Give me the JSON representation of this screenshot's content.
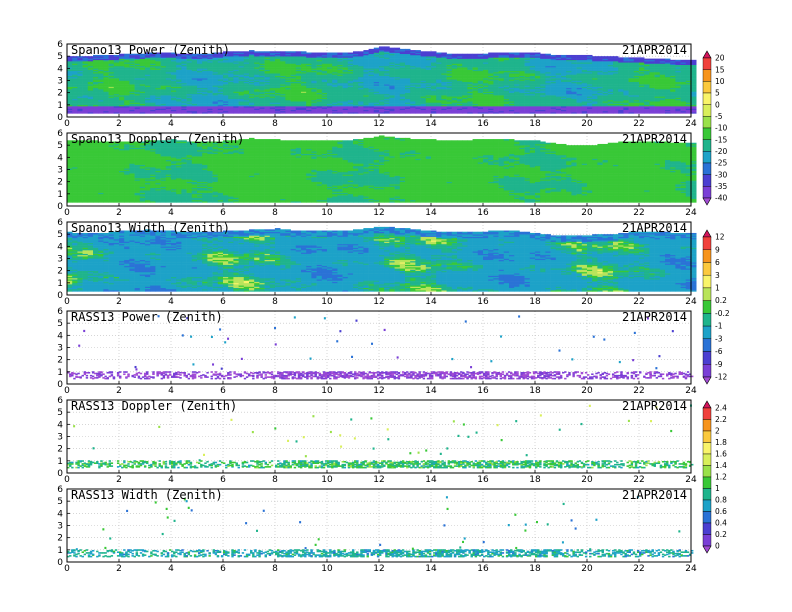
{
  "figure": {
    "date": "21APR2014"
  },
  "chart_data": [
    {
      "type": "heatmap",
      "title": "Spano13 Power (Zenith)",
      "date": "21APR2014",
      "x": {
        "range": [
          0,
          24
        ],
        "ticks": [
          "0",
          "2",
          "4",
          "6",
          "8",
          "10",
          "12",
          "14",
          "16",
          "18",
          "20",
          "22",
          "24"
        ]
      },
      "y": {
        "range": [
          0,
          6
        ],
        "ticks": [
          "0",
          "1",
          "2",
          "3",
          "4",
          "5",
          "6"
        ]
      },
      "colorbar": "A",
      "field": {
        "kind": "dense",
        "base": -18,
        "var": 6,
        "bottom_band": -40,
        "top_by_hour": [
          4.9,
          5.0,
          5.1,
          5.2,
          5.2,
          5.1,
          5.3,
          5.4,
          5.3,
          5.3,
          5.2,
          5.3,
          5.8,
          5.5,
          5.3,
          5.1,
          5.2,
          5.2,
          5.2,
          5.0,
          5.0,
          4.9,
          4.8,
          4.7,
          4.6
        ]
      }
    },
    {
      "type": "heatmap",
      "title": "Spano13 Doppler (Zenith)",
      "date": "21APR2014",
      "x": {
        "range": [
          0,
          24
        ],
        "ticks": [
          "0",
          "2",
          "4",
          "6",
          "8",
          "10",
          "12",
          "14",
          "16",
          "18",
          "20",
          "22",
          "24"
        ]
      },
      "y": {
        "range": [
          0,
          6
        ],
        "ticks": [
          "0",
          "1",
          "2",
          "3",
          "4",
          "5",
          "6"
        ]
      },
      "colorbar": "A",
      "field": {
        "kind": "dense",
        "base": -14,
        "var": 3,
        "bottom_band": null,
        "top_by_hour": [
          5.3,
          5.3,
          5.2,
          5.3,
          5.4,
          5.2,
          5.3,
          5.5,
          5.4,
          5.3,
          5.3,
          5.4,
          5.7,
          5.5,
          5.4,
          5.3,
          5.5,
          5.4,
          5.3,
          5.0,
          4.9,
          5.2,
          5.3,
          5.2,
          5.1
        ]
      }
    },
    {
      "type": "heatmap",
      "title": "Spano13 Width (Zenith)",
      "date": "21APR2014",
      "x": {
        "range": [
          0,
          24
        ],
        "ticks": [
          "0",
          "2",
          "4",
          "6",
          "8",
          "10",
          "12",
          "14",
          "16",
          "18",
          "20",
          "22",
          "24"
        ]
      },
      "y": {
        "range": [
          0,
          6
        ],
        "ticks": [
          "0",
          "1",
          "2",
          "3",
          "4",
          "5",
          "6"
        ]
      },
      "colorbar": "B",
      "field": {
        "kind": "dense",
        "base": -1.5,
        "var": 2.0,
        "bottom_band": null,
        "top_by_hour": [
          5.1,
          5.0,
          5.2,
          5.3,
          5.2,
          5.1,
          5.2,
          5.3,
          5.4,
          5.2,
          5.2,
          5.3,
          5.6,
          5.4,
          5.2,
          5.1,
          5.2,
          5.3,
          5.0,
          4.8,
          4.9,
          5.0,
          5.2,
          5.1,
          5.0
        ]
      }
    },
    {
      "type": "heatmap",
      "title": "RASS13 Power (Zenith)",
      "date": "21APR2014",
      "x": {
        "range": [
          0,
          24
        ],
        "ticks": [
          "0",
          "2",
          "4",
          "6",
          "8",
          "10",
          "12",
          "14",
          "16",
          "18",
          "20",
          "22",
          "24"
        ]
      },
      "y": {
        "range": [
          0,
          6
        ],
        "ticks": [
          "0",
          "1",
          "2",
          "3",
          "4",
          "5",
          "6"
        ]
      },
      "colorbar": "B",
      "field": {
        "kind": "sparse",
        "low_band": [
          0.45,
          1.0
        ],
        "low_value": -12,
        "scatter_values": [
          -6,
          -9,
          -12,
          -3
        ]
      }
    },
    {
      "type": "heatmap",
      "title": "RASS13 Doppler (Zenith)",
      "date": "21APR2014",
      "x": {
        "range": [
          0,
          24
        ],
        "ticks": [
          "0",
          "2",
          "4",
          "6",
          "8",
          "10",
          "12",
          "14",
          "16",
          "18",
          "20",
          "22",
          "24"
        ]
      },
      "y": {
        "range": [
          0,
          6
        ],
        "ticks": [
          "0",
          "1",
          "2",
          "3",
          "4",
          "5",
          "6"
        ]
      },
      "colorbar": "C",
      "field": {
        "kind": "sparse",
        "low_band": [
          0.45,
          1.0
        ],
        "low_value": 1.0,
        "scatter_values": [
          1.0,
          1.2,
          1.4,
          0.8
        ]
      }
    },
    {
      "type": "heatmap",
      "title": "RASS13 Width (Zenith)",
      "date": "21APR2014",
      "x": {
        "range": [
          0,
          24
        ],
        "ticks": [
          "0",
          "2",
          "4",
          "6",
          "8",
          "10",
          "12",
          "14",
          "16",
          "18",
          "20",
          "22",
          "24"
        ]
      },
      "y": {
        "range": [
          0,
          6
        ],
        "ticks": [
          "0",
          "1",
          "2",
          "3",
          "4",
          "5",
          "6"
        ]
      },
      "colorbar": "C",
      "field": {
        "kind": "sparse",
        "low_band": [
          0.45,
          1.0
        ],
        "low_value": 0.8,
        "scatter_values": [
          0.6,
          0.8,
          1.0,
          0.4
        ]
      }
    }
  ],
  "colorbars": {
    "A": {
      "labels": [
        "20",
        "15",
        "10",
        "5",
        "0",
        "-5",
        "-10",
        "-15",
        "-20",
        "-25",
        "-30",
        "-35",
        "-40"
      ],
      "colors": [
        "#d4145a",
        "#f0413c",
        "#f7941d",
        "#fbc93d",
        "#f9f46a",
        "#d9ef5b",
        "#9ae14a",
        "#39c837",
        "#1fb48c",
        "#1da2c8",
        "#2a72d6",
        "#4b3fd1",
        "#7a3fd6",
        "#a24bd4"
      ]
    },
    "B": {
      "labels": [
        "12",
        "9",
        "6",
        "3",
        "1",
        "0.2",
        "-0.2",
        "-1",
        "-3",
        "-6",
        "-9",
        "-12"
      ],
      "colors": [
        "#d4145a",
        "#f0413c",
        "#f7941d",
        "#fbc93d",
        "#f9f46a",
        "#b9e45a",
        "#39c837",
        "#1fb48c",
        "#1da2c8",
        "#2a72d6",
        "#4b3fd1",
        "#7a3fd6",
        "#a24bd4"
      ]
    },
    "C": {
      "labels": [
        "2.4",
        "2.2",
        "2",
        "1.8",
        "1.6",
        "1.4",
        "1.2",
        "1",
        "0.8",
        "0.6",
        "0.4",
        "0.2",
        "0"
      ],
      "colors": [
        "#d4145a",
        "#f0413c",
        "#f7941d",
        "#fbc93d",
        "#f9f46a",
        "#d9ef5b",
        "#9ae14a",
        "#39c837",
        "#1fb48c",
        "#1da2c8",
        "#2a72d6",
        "#4b3fd1",
        "#7a3fd6",
        "#a24bd4"
      ]
    }
  }
}
